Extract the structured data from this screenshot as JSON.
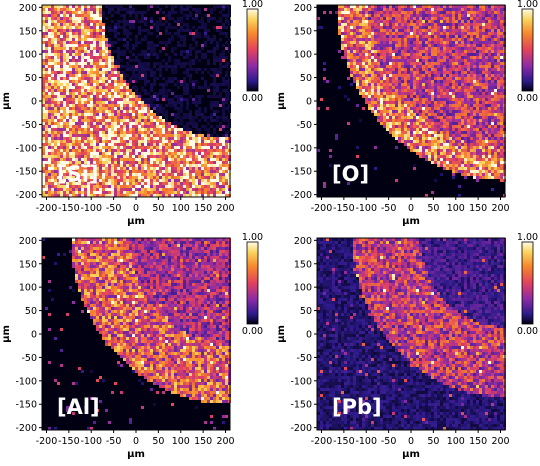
{
  "colors": {
    "bg": "#ffffff",
    "text": "#000000"
  },
  "chart_data": [
    {
      "type": "heatmap",
      "element_label": "[Si]",
      "xlabel": "µm",
      "ylabel": "µm",
      "xlim": [
        -210,
        210
      ],
      "ylim": [
        -205,
        205
      ],
      "xticks": [
        "-200",
        "-150",
        "-100",
        "-50",
        "0",
        "50",
        "100",
        "150",
        "200"
      ],
      "yticks": [
        "200",
        "150",
        "100",
        "50",
        "0",
        "-50",
        "-100",
        "-150",
        "-200"
      ],
      "colorbar": {
        "max": "1.00",
        "min": "0.00"
      },
      "map": {
        "center_x_um": 210,
        "center_y_um": 205,
        "inner_radius_um": 0,
        "outer_radius_um": 285,
        "level_inside": 0.05,
        "level_ring": 0.05,
        "level_outside": 0.9,
        "ring_width_um": 0,
        "corner_level": 0.05
      }
    },
    {
      "type": "heatmap",
      "element_label": "[O]",
      "xlabel": "µm",
      "ylabel": "µm",
      "xlim": [
        -210,
        210
      ],
      "ylim": [
        -205,
        205
      ],
      "xticks": [
        "-200",
        "-150",
        "-100",
        "-50",
        "0",
        "50",
        "100",
        "150",
        "200"
      ],
      "yticks": [
        "200",
        "150",
        "100",
        "50",
        "0",
        "-50",
        "-100",
        "-150",
        "-200"
      ],
      "colorbar": {
        "max": "1.00",
        "min": "0.00"
      },
      "map": {
        "center_x_um": 210,
        "center_y_um": 205,
        "inner_radius_um": 0,
        "outer_radius_um": 375,
        "level_inside": 0.55,
        "level_ring": 0.8,
        "level_outside": 0.03,
        "ring_width_um": 70,
        "corner_level": 0.7
      }
    },
    {
      "type": "heatmap",
      "element_label": "[Al]",
      "xlabel": "µm",
      "ylabel": "µm",
      "xlim": [
        -210,
        210
      ],
      "ylim": [
        -205,
        205
      ],
      "xticks": [
        "-200",
        "-150",
        "-100",
        "-50",
        "0",
        "50",
        "100",
        "150",
        "200"
      ],
      "yticks": [
        "200",
        "150",
        "100",
        "50",
        "0",
        "-50",
        "-100",
        "-150",
        "-200"
      ],
      "colorbar": {
        "max": "1.00",
        "min": "0.00"
      },
      "map": {
        "center_x_um": 210,
        "center_y_um": 205,
        "inner_radius_um": 0,
        "outer_radius_um": 355,
        "level_inside": 0.45,
        "level_ring": 0.7,
        "level_outside": 0.03,
        "ring_width_um": 130,
        "corner_level": 0.45
      }
    },
    {
      "type": "heatmap",
      "element_label": "[Pb]",
      "xlabel": "µm",
      "ylabel": "µm",
      "xlim": [
        -210,
        210
      ],
      "ylim": [
        -205,
        205
      ],
      "xticks": [
        "-200",
        "-150",
        "-100",
        "-50",
        "0",
        "50",
        "100",
        "150",
        "200"
      ],
      "yticks": [
        "200",
        "150",
        "100",
        "50",
        "0",
        "-50",
        "-100",
        "-150",
        "-200"
      ],
      "colorbar": {
        "max": "1.00",
        "min": "0.00"
      },
      "map": {
        "center_x_um": 210,
        "center_y_um": 205,
        "inner_radius_um": 130,
        "outer_radius_um": 340,
        "level_inside": 0.2,
        "level_ring": 0.55,
        "level_outside": 0.12,
        "ring_width_um": 150,
        "corner_level": 0.2
      }
    }
  ]
}
